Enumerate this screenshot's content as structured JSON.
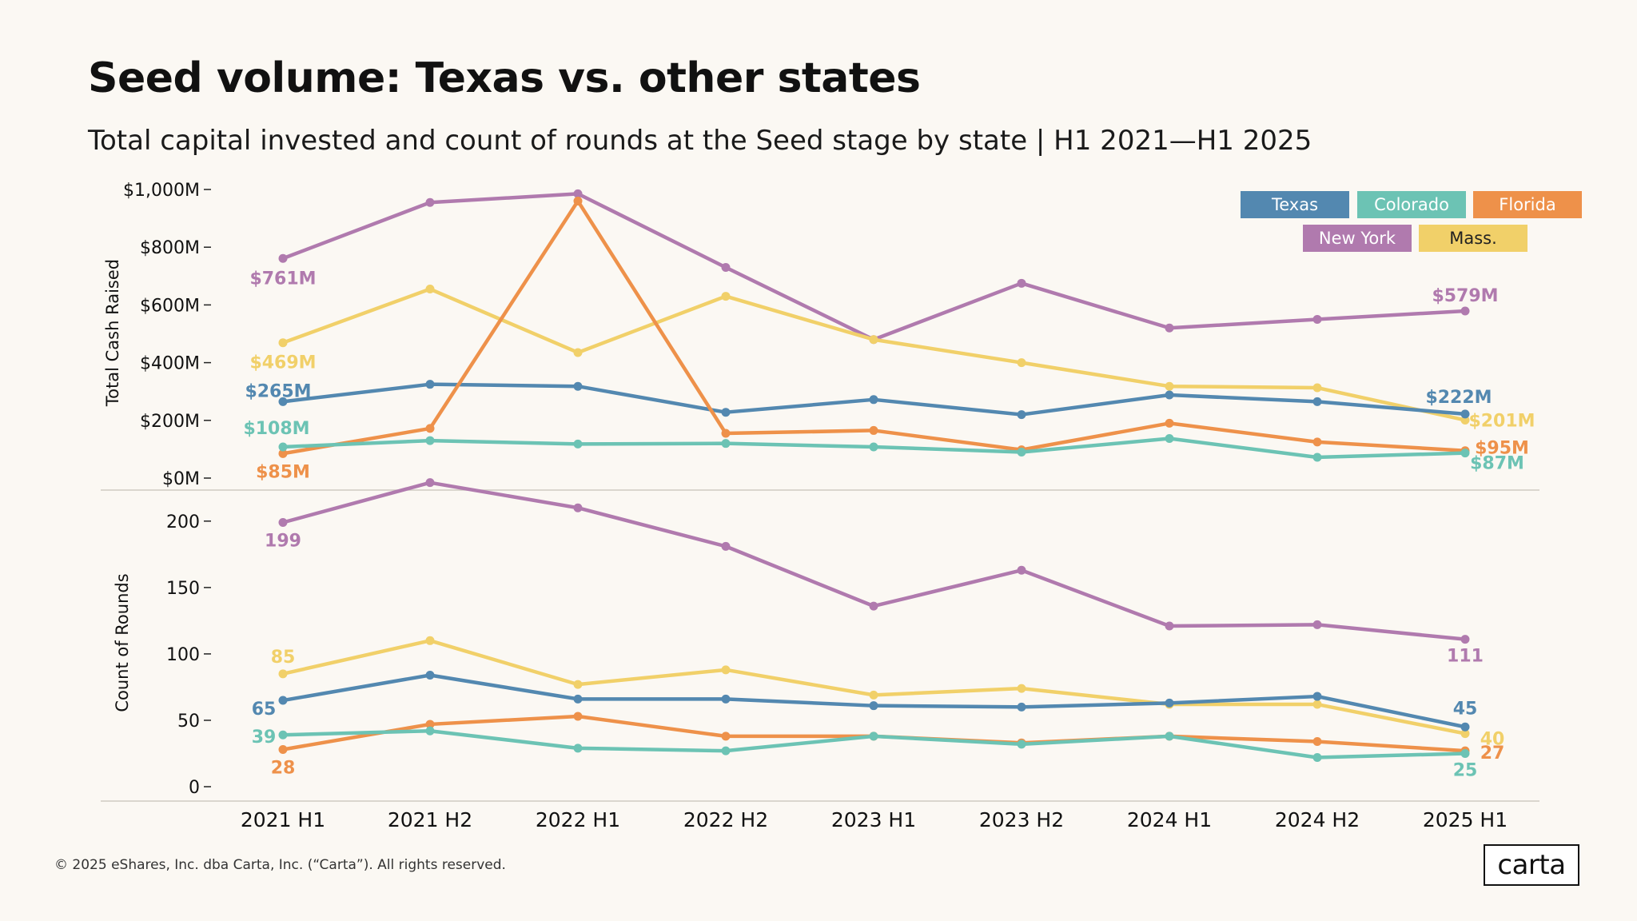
{
  "title": "Seed volume: Texas vs. other states",
  "subtitle": "Total capital invested and count of rounds at the Seed stage by state | H1 2021—H1 2025",
  "footer": "© 2025 eShares, Inc. dba Carta, Inc. (“Carta”). All rights reserved.",
  "logo_text": "carta",
  "legend": [
    {
      "name": "Texas",
      "color": "#5388B0"
    },
    {
      "name": "Colorado",
      "color": "#6CC3B4"
    },
    {
      "name": "Florida",
      "color": "#EE914A"
    },
    {
      "name": "New York",
      "color": "#B07AAE"
    },
    {
      "name": "Mass.",
      "color": "#F1D069"
    }
  ],
  "chart_data": [
    {
      "type": "line",
      "ylabel": "Total Cash Raised",
      "ylim": [
        0,
        1000
      ],
      "yticks": [
        {
          "value": 0,
          "label": "$0M"
        },
        {
          "value": 200,
          "label": "$200M"
        },
        {
          "value": 400,
          "label": "$400M"
        },
        {
          "value": 600,
          "label": "$600M"
        },
        {
          "value": 800,
          "label": "$800M"
        },
        {
          "value": 1000,
          "label": "$1,000M"
        }
      ],
      "x": [
        "2021 H1",
        "2021 H2",
        "2022 H1",
        "2022 H2",
        "2023 H1",
        "2023 H2",
        "2024 H1",
        "2024 H2",
        "2025 H1"
      ],
      "series": [
        {
          "name": "New York",
          "color": "#B07AAE",
          "values": [
            761,
            955,
            985,
            730,
            480,
            675,
            520,
            550,
            579
          ],
          "first_label": "$761M",
          "last_label": "$579M"
        },
        {
          "name": "Mass.",
          "color": "#F1D069",
          "values": [
            469,
            655,
            435,
            630,
            480,
            400,
            318,
            313,
            201
          ],
          "first_label": "$469M",
          "last_label": "$201M"
        },
        {
          "name": "Texas",
          "color": "#5388B0",
          "values": [
            265,
            325,
            318,
            228,
            272,
            220,
            288,
            265,
            222
          ],
          "first_label": "$265M",
          "last_label": "$222M"
        },
        {
          "name": "Florida",
          "color": "#EE914A",
          "values": [
            85,
            172,
            960,
            155,
            165,
            98,
            190,
            125,
            95
          ],
          "first_label": "$85M",
          "last_label": "$95M"
        },
        {
          "name": "Colorado",
          "color": "#6CC3B4",
          "values": [
            108,
            130,
            118,
            120,
            108,
            90,
            137,
            72,
            87
          ],
          "first_label": "$108M",
          "last_label": "$87M"
        }
      ]
    },
    {
      "type": "line",
      "ylabel": "Count of Rounds",
      "ylim": [
        0,
        230
      ],
      "yticks": [
        {
          "value": 0,
          "label": "0"
        },
        {
          "value": 50,
          "label": "50"
        },
        {
          "value": 100,
          "label": "100"
        },
        {
          "value": 150,
          "label": "150"
        },
        {
          "value": 200,
          "label": "200"
        }
      ],
      "x": [
        "2021 H1",
        "2021 H2",
        "2022 H1",
        "2022 H2",
        "2023 H1",
        "2023 H2",
        "2024 H1",
        "2024 H2",
        "2025 H1"
      ],
      "series": [
        {
          "name": "New York",
          "color": "#B07AAE",
          "values": [
            199,
            229,
            210,
            181,
            136,
            163,
            121,
            122,
            111
          ],
          "first_label": "199",
          "last_label": "111"
        },
        {
          "name": "Mass.",
          "color": "#F1D069",
          "values": [
            85,
            110,
            77,
            88,
            69,
            74,
            62,
            62,
            40
          ],
          "first_label": "85",
          "last_label": "40"
        },
        {
          "name": "Texas",
          "color": "#5388B0",
          "values": [
            65,
            84,
            66,
            66,
            61,
            60,
            63,
            68,
            45
          ],
          "first_label": "65",
          "last_label": "45"
        },
        {
          "name": "Florida",
          "color": "#EE914A",
          "values": [
            28,
            47,
            53,
            38,
            38,
            33,
            38,
            34,
            27
          ],
          "first_label": "28",
          "last_label": "27"
        },
        {
          "name": "Colorado",
          "color": "#6CC3B4",
          "values": [
            39,
            42,
            29,
            27,
            38,
            32,
            38,
            22,
            25
          ],
          "first_label": "39",
          "last_label": "25"
        }
      ]
    }
  ]
}
